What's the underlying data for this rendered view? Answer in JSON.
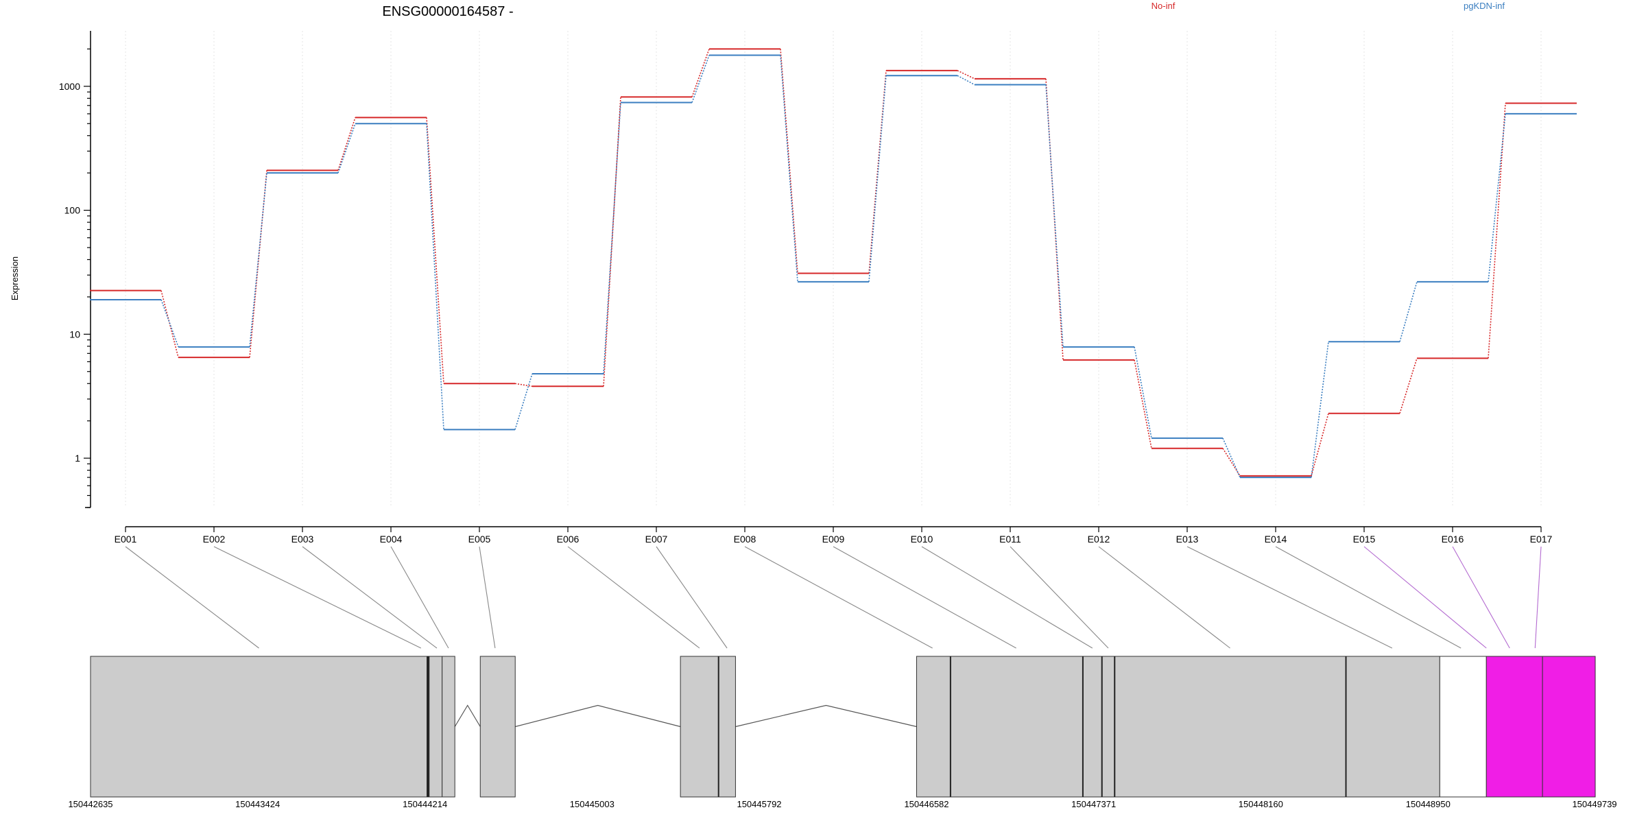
{
  "gene_title": "ENSG00000164587 -",
  "legend": {
    "no_inf": {
      "label": "No-inf",
      "color": "#d62728"
    },
    "pgkdn_inf": {
      "label": "pgKDN-inf",
      "color": "#3a7ec0"
    }
  },
  "chart_data": {
    "type": "line",
    "title": "ENSG00000164587 -",
    "ylabel": "Expression",
    "xlabel": "",
    "y_scale": "log",
    "ylim": [
      0.4,
      2800
    ],
    "y_ticks": [
      1,
      10,
      100,
      1000
    ],
    "y_tick_labels": [
      "1",
      "10",
      "100",
      "1000"
    ],
    "grid": "vertical dotted lines at each exon",
    "legend_position": "top",
    "categories": [
      "E001",
      "E002",
      "E003",
      "E004",
      "E005",
      "E006",
      "E007",
      "E008",
      "E009",
      "E010",
      "E011",
      "E012",
      "E013",
      "E014",
      "E015",
      "E016",
      "E017"
    ],
    "series": [
      {
        "name": "No-inf",
        "color": "#d62728",
        "values": [
          22.5,
          6.5,
          210,
          560,
          4.0,
          3.8,
          820,
          2000,
          31,
          1340,
          1150,
          6.2,
          1.2,
          0.72,
          2.3,
          6.4,
          730
        ]
      },
      {
        "name": "pgKDN-inf",
        "color": "#3a7ec0",
        "values": [
          19,
          7.9,
          200,
          500,
          1.7,
          4.8,
          740,
          1780,
          26.5,
          1220,
          1030,
          7.9,
          1.45,
          0.7,
          8.7,
          26.5,
          600
        ]
      }
    ]
  },
  "gene_model": {
    "coordinate_labels": [
      "150442635",
      "150443424",
      "150444214",
      "150445003",
      "150445792",
      "150446582",
      "150447371",
      "150448160",
      "150448950",
      "150449739"
    ],
    "coordinate_values": [
      150442635,
      150443424,
      150444214,
      150445003,
      150445792,
      150446582,
      150447371,
      150448160,
      150448950,
      150449739
    ],
    "range": [
      150442635,
      150449739
    ],
    "exon_fill": "#cccccc",
    "highlight_fill": "#f01ee6",
    "normal_line_color": "#888888",
    "highlight_line_color": "#b36ad0",
    "exon_blocks": [
      {
        "start": 150442635,
        "end": 150444230
      },
      {
        "start": 150444230,
        "end": 150444295
      },
      {
        "start": 150444295,
        "end": 150444355
      },
      {
        "start": 150444475,
        "end": 150444640
      },
      {
        "start": 150445420,
        "end": 150445600
      },
      {
        "start": 150445600,
        "end": 150445680
      },
      {
        "start": 150446535,
        "end": 150446695
      },
      {
        "start": 150446695,
        "end": 150447320
      },
      {
        "start": 150447320,
        "end": 150447410
      },
      {
        "start": 150447410,
        "end": 150447470
      },
      {
        "start": 150447470,
        "end": 150448562
      },
      {
        "start": 150448562,
        "end": 150449005
      }
    ],
    "highlight_blocks": [
      {
        "start": 150449225,
        "end": 150449490
      },
      {
        "start": 150449490,
        "end": 150449739
      }
    ],
    "introns": [
      {
        "start": 150444355,
        "end": 150444475
      },
      {
        "start": 150444640,
        "end": 150445420
      },
      {
        "start": 150445680,
        "end": 150446535
      }
    ],
    "connector_targets": [
      150443430,
      150444195,
      150444270,
      150444325,
      150444545,
      150445510,
      150445640,
      150446610,
      150447005,
      150447365,
      150447440,
      150448015,
      150448780,
      150449105,
      150449225,
      150449335,
      150449455
    ]
  }
}
